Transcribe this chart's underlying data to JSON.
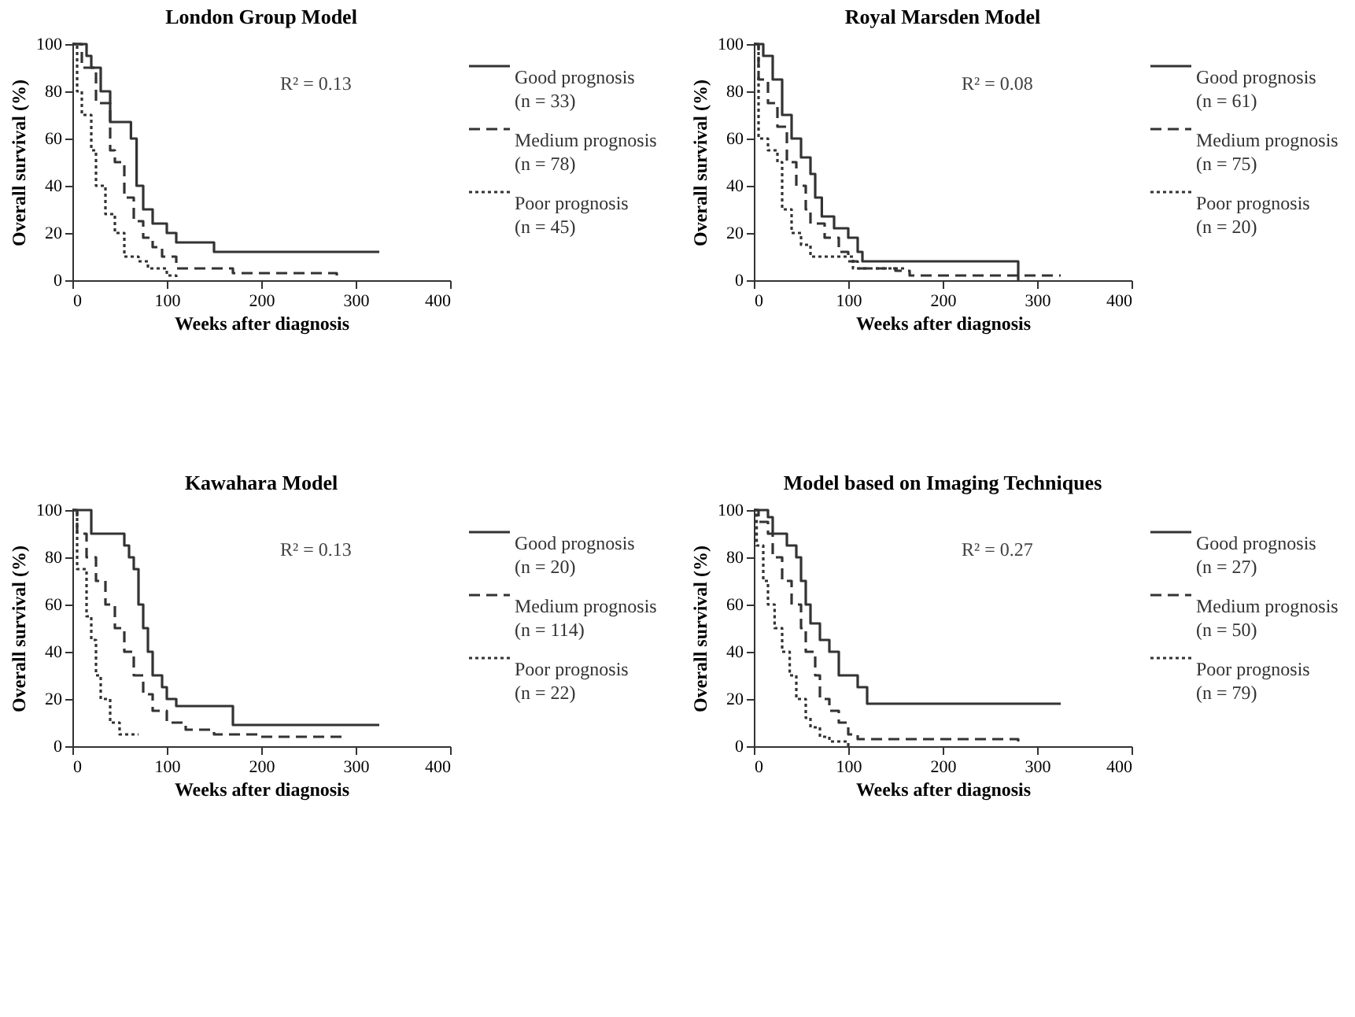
{
  "chart_data": [
    {
      "type": "step",
      "title": "London Group Model",
      "xlabel": "Weeks after diagnosis",
      "ylabel": "Overall survival (%)",
      "xlim": [
        0,
        400
      ],
      "ylim": [
        0,
        100
      ],
      "xticks": [
        0,
        100,
        200,
        300,
        400
      ],
      "yticks": [
        0,
        20,
        40,
        60,
        80,
        100
      ],
      "grid": false,
      "legend": "right",
      "annotations": [
        "R² = 0.13"
      ],
      "series": [
        {
          "name": "Good prognosis\n(n = 33)",
          "color": "#333333",
          "line_style": "solid",
          "x": [
            0,
            15,
            20,
            30,
            40,
            60,
            62,
            68,
            75,
            85,
            100,
            110,
            150,
            325
          ],
          "values": [
            100,
            95,
            90,
            80,
            67,
            67,
            60,
            40,
            30,
            24,
            20,
            16,
            12,
            12
          ]
        },
        {
          "name": "Medium prognosis\n(n = 78)",
          "color": "#333333",
          "line_style": "dashed",
          "x": [
            0,
            10,
            25,
            40,
            45,
            55,
            65,
            75,
            85,
            95,
            110,
            165,
            170,
            275,
            280
          ],
          "values": [
            100,
            90,
            75,
            55,
            50,
            35,
            25,
            18,
            14,
            10,
            5,
            5,
            3,
            3,
            0
          ]
        },
        {
          "name": "Poor prognosis\n(n = 45)",
          "color": "#333333",
          "line_style": "dotted",
          "x": [
            0,
            5,
            10,
            20,
            25,
            35,
            45,
            55,
            70,
            80,
            100,
            110
          ],
          "values": [
            100,
            80,
            70,
            55,
            40,
            28,
            20,
            10,
            8,
            5,
            2,
            0
          ]
        }
      ]
    },
    {
      "type": "step",
      "title": "Royal Marsden Model",
      "xlabel": "Weeks after diagnosis",
      "ylabel": "Overall survival (%)",
      "xlim": [
        0,
        400
      ],
      "ylim": [
        0,
        100
      ],
      "xticks": [
        0,
        100,
        200,
        300,
        400
      ],
      "yticks": [
        0,
        20,
        40,
        60,
        80,
        100
      ],
      "grid": false,
      "legend": "right",
      "annotations": [
        "R² = 0.08"
      ],
      "series": [
        {
          "name": "Good prognosis\n(n = 61)",
          "color": "#333333",
          "line_style": "solid",
          "x": [
            0,
            10,
            20,
            30,
            40,
            50,
            60,
            65,
            72,
            85,
            100,
            110,
            115,
            280
          ],
          "values": [
            100,
            95,
            85,
            70,
            60,
            52,
            45,
            35,
            27,
            22,
            18,
            12,
            8,
            0
          ]
        },
        {
          "name": "Medium prognosis\n(n = 75)",
          "color": "#333333",
          "line_style": "dashed",
          "x": [
            0,
            5,
            15,
            25,
            35,
            45,
            55,
            60,
            75,
            90,
            100,
            110,
            150,
            165,
            325
          ],
          "values": [
            100,
            85,
            75,
            65,
            50,
            40,
            30,
            24,
            18,
            12,
            8,
            5,
            4,
            2,
            2
          ]
        },
        {
          "name": "Poor prognosis\n(n = 20)",
          "color": "#333333",
          "line_style": "dotted",
          "x": [
            0,
            5,
            15,
            25,
            30,
            40,
            50,
            60,
            105,
            160
          ],
          "values": [
            100,
            60,
            55,
            50,
            30,
            20,
            15,
            10,
            5,
            5
          ]
        }
      ]
    },
    {
      "type": "step",
      "title": "Kawahara Model",
      "xlabel": "Weeks after diagnosis",
      "ylabel": "Overall survival (%)",
      "xlim": [
        0,
        400
      ],
      "ylim": [
        0,
        100
      ],
      "xticks": [
        0,
        100,
        200,
        300,
        400
      ],
      "yticks": [
        0,
        20,
        40,
        60,
        80,
        100
      ],
      "grid": false,
      "legend": "right",
      "annotations": [
        "R² = 0.13"
      ],
      "series": [
        {
          "name": "Good prognosis\n(n = 20)",
          "color": "#333333",
          "line_style": "solid",
          "x": [
            0,
            15,
            20,
            50,
            55,
            60,
            65,
            70,
            75,
            80,
            85,
            95,
            100,
            110,
            170,
            325
          ],
          "values": [
            100,
            100,
            90,
            90,
            85,
            80,
            75,
            60,
            50,
            40,
            30,
            25,
            20,
            17,
            9,
            9
          ]
        },
        {
          "name": "Medium prognosis\n(n = 114)",
          "color": "#333333",
          "line_style": "dashed",
          "x": [
            0,
            5,
            15,
            25,
            35,
            45,
            55,
            65,
            75,
            85,
            100,
            120,
            150,
            200,
            285
          ],
          "values": [
            100,
            90,
            80,
            70,
            60,
            50,
            40,
            30,
            22,
            15,
            10,
            7,
            5,
            4,
            4
          ]
        },
        {
          "name": "Poor prognosis\n(n = 22)",
          "color": "#333333",
          "line_style": "dotted",
          "x": [
            0,
            5,
            15,
            20,
            25,
            30,
            40,
            50,
            70
          ],
          "values": [
            100,
            75,
            55,
            45,
            30,
            20,
            10,
            5,
            5
          ]
        }
      ]
    },
    {
      "type": "step",
      "title": "Model based on Imaging Techniques",
      "xlabel": "Weeks after diagnosis",
      "ylabel": "Overall survival (%)",
      "xlim": [
        0,
        400
      ],
      "ylim": [
        0,
        100
      ],
      "xticks": [
        0,
        100,
        200,
        300,
        400
      ],
      "yticks": [
        0,
        20,
        40,
        60,
        80,
        100
      ],
      "grid": false,
      "legend": "right",
      "annotations": [
        "R² = 0.27"
      ],
      "series": [
        {
          "name": "Good prognosis\n(n = 27)",
          "color": "#333333",
          "line_style": "solid",
          "x": [
            0,
            10,
            15,
            20,
            35,
            45,
            50,
            55,
            60,
            70,
            80,
            90,
            110,
            120,
            325
          ],
          "values": [
            100,
            100,
            97,
            90,
            85,
            80,
            70,
            60,
            52,
            45,
            40,
            30,
            25,
            18,
            18
          ]
        },
        {
          "name": "Medium prognosis\n(n = 50)",
          "color": "#333333",
          "line_style": "dashed",
          "x": [
            0,
            5,
            15,
            20,
            30,
            40,
            50,
            55,
            65,
            70,
            80,
            90,
            100,
            110,
            280
          ],
          "values": [
            100,
            95,
            90,
            80,
            70,
            60,
            50,
            40,
            30,
            20,
            15,
            10,
            5,
            3,
            0
          ]
        },
        {
          "name": "Poor prognosis\n(n = 79)",
          "color": "#333333",
          "line_style": "dotted",
          "x": [
            0,
            3,
            10,
            15,
            22,
            30,
            38,
            45,
            55,
            60,
            70,
            80,
            100
          ],
          "values": [
            100,
            85,
            70,
            60,
            50,
            40,
            30,
            20,
            12,
            8,
            4,
            2,
            0
          ]
        }
      ]
    }
  ]
}
